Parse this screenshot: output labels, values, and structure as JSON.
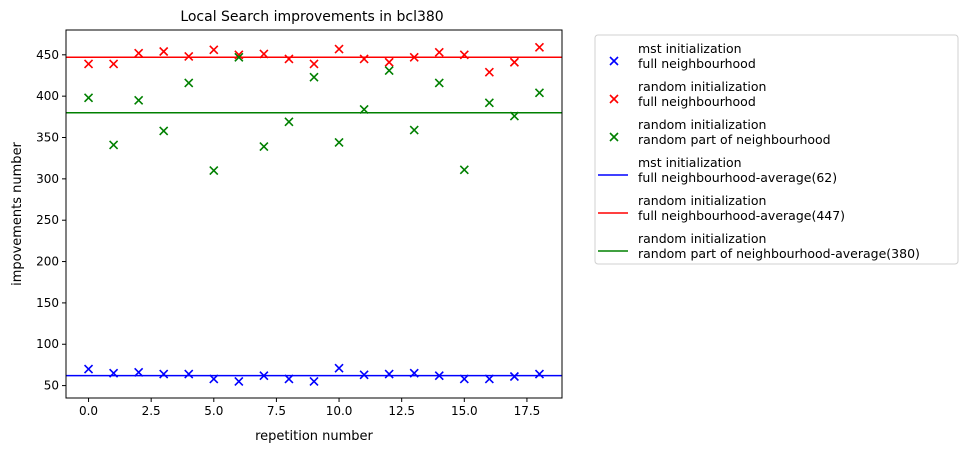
{
  "chart_data": {
    "type": "scatter",
    "title": "Local Search improvements in bcl380",
    "xlabel": "repetition number",
    "ylabel": "impovements number",
    "xlim": [
      -0.9,
      18.9
    ],
    "ylim": [
      35,
      480
    ],
    "xticks": [
      0.0,
      2.5,
      5.0,
      7.5,
      10.0,
      12.5,
      15.0,
      17.5
    ],
    "xtick_labels": [
      "0.0",
      "2.5",
      "5.0",
      "7.5",
      "10.0",
      "12.5",
      "15.0",
      "17.5"
    ],
    "yticks": [
      50,
      100,
      150,
      200,
      250,
      300,
      350,
      400,
      450
    ],
    "ytick_labels": [
      "50",
      "100",
      "150",
      "200",
      "250",
      "300",
      "350",
      "400",
      "450"
    ],
    "grid": false,
    "legend_position": "outside-right",
    "x": [
      0,
      1,
      2,
      3,
      4,
      5,
      6,
      7,
      8,
      9,
      10,
      11,
      12,
      13,
      14,
      15,
      16,
      17,
      18
    ],
    "series": [
      {
        "name": "mst initialization\nfull neighbourhood",
        "marker": "x",
        "color": "#0000ff",
        "values": [
          70,
          65,
          66,
          64,
          64,
          58,
          55,
          62,
          58,
          55,
          71,
          63,
          64,
          65,
          62,
          58,
          58,
          61,
          64
        ]
      },
      {
        "name": "random initialization\nfull neighbourhood",
        "marker": "x",
        "color": "#ff0000",
        "values": [
          439,
          439,
          452,
          454,
          448,
          456,
          450,
          451,
          445,
          439,
          457,
          445,
          441,
          447,
          453,
          450,
          429,
          441,
          459
        ]
      },
      {
        "name": "random initialization\nrandom part of neighbourhood",
        "marker": "x",
        "color": "#008000",
        "values": [
          398,
          341,
          395,
          358,
          416,
          310,
          447,
          339,
          369,
          423,
          344,
          384,
          431,
          359,
          416,
          311,
          392,
          376,
          404
        ]
      }
    ],
    "hlines": [
      {
        "name": "mst initialization\nfull neighbourhood-average(62)",
        "y": 62,
        "color": "#0000ff"
      },
      {
        "name": "random initialization\nfull neighbourhood-average(447)",
        "y": 447,
        "color": "#ff0000"
      },
      {
        "name": "random initialization\nrandom part of neighbourhood-average(380)",
        "y": 380,
        "color": "#008000"
      }
    ]
  }
}
